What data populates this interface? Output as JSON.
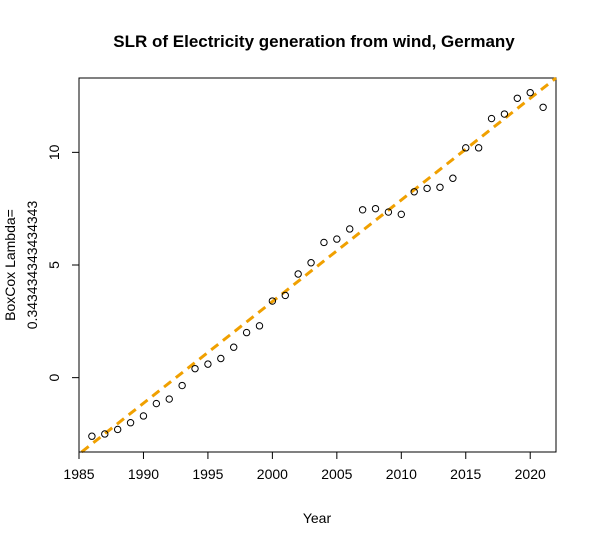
{
  "chart_data": {
    "type": "scatter",
    "title": "SLR of Electricity generation from wind, Germany",
    "xlabel": "Year",
    "ylabel_lines": [
      "BoxCox Lambda=",
      "0.343434343434343"
    ],
    "xlim": [
      1985,
      2022
    ],
    "ylim": [
      -3.3,
      13.3
    ],
    "x_ticks": [
      1985,
      1990,
      1995,
      2000,
      2005,
      2010,
      2015,
      2020
    ],
    "y_ticks": [
      0,
      5,
      10
    ],
    "points": [
      {
        "x": 1986,
        "y": -2.6
      },
      {
        "x": 1987,
        "y": -2.5
      },
      {
        "x": 1988,
        "y": -2.3
      },
      {
        "x": 1989,
        "y": -2.0
      },
      {
        "x": 1990,
        "y": -1.7
      },
      {
        "x": 1991,
        "y": -1.15
      },
      {
        "x": 1992,
        "y": -0.95
      },
      {
        "x": 1993,
        "y": -0.35
      },
      {
        "x": 1994,
        "y": 0.4
      },
      {
        "x": 1995,
        "y": 0.6
      },
      {
        "x": 1996,
        "y": 0.85
      },
      {
        "x": 1997,
        "y": 1.35
      },
      {
        "x": 1998,
        "y": 2.0
      },
      {
        "x": 1999,
        "y": 2.3
      },
      {
        "x": 2000,
        "y": 3.4
      },
      {
        "x": 2001,
        "y": 3.65
      },
      {
        "x": 2002,
        "y": 4.6
      },
      {
        "x": 2003,
        "y": 5.1
      },
      {
        "x": 2004,
        "y": 6.0
      },
      {
        "x": 2005,
        "y": 6.15
      },
      {
        "x": 2006,
        "y": 6.6
      },
      {
        "x": 2007,
        "y": 7.45
      },
      {
        "x": 2008,
        "y": 7.5
      },
      {
        "x": 2009,
        "y": 7.35
      },
      {
        "x": 2010,
        "y": 7.25
      },
      {
        "x": 2011,
        "y": 8.25
      },
      {
        "x": 2012,
        "y": 8.4
      },
      {
        "x": 2013,
        "y": 8.45
      },
      {
        "x": 2014,
        "y": 8.85
      },
      {
        "x": 2015,
        "y": 10.2
      },
      {
        "x": 2016,
        "y": 10.2
      },
      {
        "x": 2017,
        "y": 11.5
      },
      {
        "x": 2018,
        "y": 11.7
      },
      {
        "x": 2019,
        "y": 12.4
      },
      {
        "x": 2020,
        "y": 12.65
      },
      {
        "x": 2021,
        "y": 12.0
      }
    ],
    "fit_line": {
      "x": [
        1985.2,
        2022
      ],
      "y": [
        -3.3,
        13.3
      ],
      "style": "dashed",
      "color": "#f0a000"
    },
    "point_color": "#000000",
    "grid": false
  }
}
